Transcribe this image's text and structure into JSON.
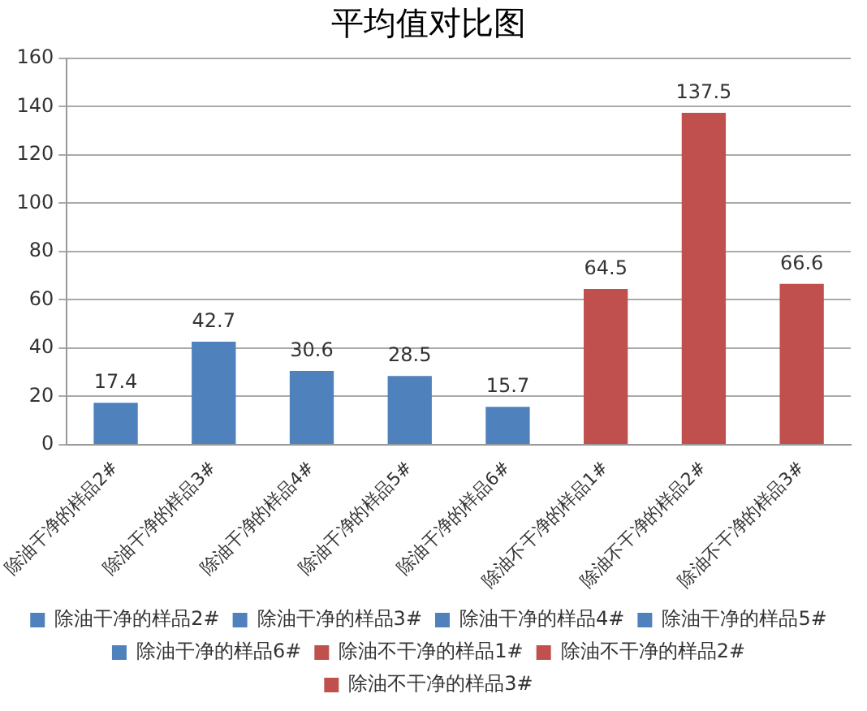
{
  "chart_data": {
    "type": "bar",
    "title": "平均值对比图",
    "categories": [
      "除油干净的样品2#",
      "除油干净的样品3#",
      "除油干净的样品4#",
      "除油干净的样品5#",
      "除油干净的样品6#",
      "除油不干净的样品1#",
      "除油不干净的样品2#",
      "除油不干净的样品3#"
    ],
    "series": [
      {
        "name": "除油干净的样品2#",
        "color": "#4f81bd",
        "values": [
          17.4,
          null,
          null,
          null,
          null,
          null,
          null,
          null
        ]
      },
      {
        "name": "除油干净的样品3#",
        "color": "#4f81bd",
        "values": [
          null,
          42.7,
          null,
          null,
          null,
          null,
          null,
          null
        ]
      },
      {
        "name": "除油干净的样品4#",
        "color": "#4f81bd",
        "values": [
          null,
          null,
          30.6,
          null,
          null,
          null,
          null,
          null
        ]
      },
      {
        "name": "除油干净的样品5#",
        "color": "#4f81bd",
        "values": [
          null,
          null,
          null,
          28.5,
          null,
          null,
          null,
          null
        ]
      },
      {
        "name": "除油干净的样品6#",
        "color": "#4f81bd",
        "values": [
          null,
          null,
          null,
          null,
          15.7,
          null,
          null,
          null
        ]
      },
      {
        "name": "除油不干净的样品1#",
        "color": "#c0504d",
        "values": [
          null,
          null,
          null,
          null,
          null,
          64.5,
          null,
          null
        ]
      },
      {
        "name": "除油不干净的样品2#",
        "color": "#c0504d",
        "values": [
          null,
          null,
          null,
          null,
          null,
          null,
          137.5,
          null
        ]
      },
      {
        "name": "除油不干净的样品3#",
        "color": "#c0504d",
        "values": [
          null,
          null,
          null,
          null,
          null,
          null,
          null,
          66.6
        ]
      }
    ],
    "ylim": [
      0,
      160
    ],
    "yticks": [
      0,
      20,
      40,
      60,
      80,
      100,
      120,
      140,
      160
    ],
    "grid": "y",
    "legend": "bottom",
    "data_labels": true
  }
}
